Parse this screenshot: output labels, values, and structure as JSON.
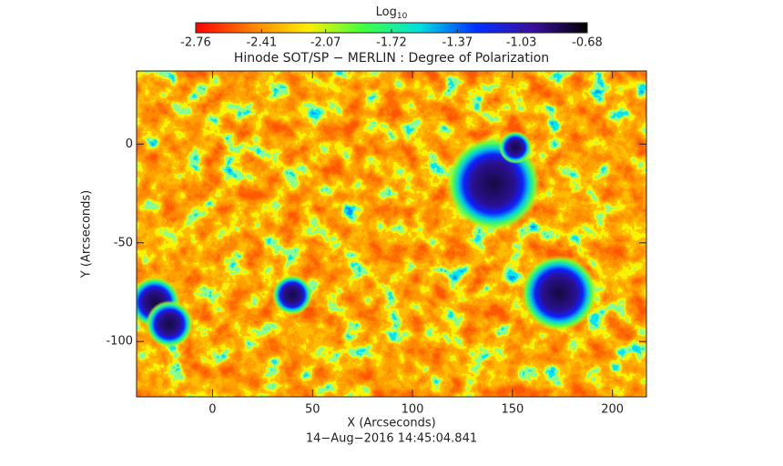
{
  "chart_data": {
    "type": "image",
    "title": "Hinode SOT/SP − MERLIN : Degree of Polarization",
    "x_label": "X (Arcseconds)",
    "y_label": "Y (Arcseconds)",
    "date": "14−Aug−2016 14:45:04.841",
    "colorbar_label": "Log",
    "colorbar_label_sub": "10",
    "colorbar_lim": [
      -2.76,
      -0.68
    ],
    "colorbar_ticks": [
      -2.76,
      -2.41,
      -2.07,
      -1.72,
      -1.37,
      -1.03,
      -0.68
    ],
    "colormap": [
      "#ff0000",
      "#ff8000",
      "#ffee00",
      "#40ff40",
      "#00e0e0",
      "#0030ff",
      "#3a10a0",
      "#000000"
    ],
    "xlim": [
      -38,
      217
    ],
    "ylim": [
      -128,
      37
    ],
    "xticks": [
      0,
      50,
      100,
      150,
      200
    ],
    "yticks": [
      0,
      -50,
      -100
    ]
  }
}
